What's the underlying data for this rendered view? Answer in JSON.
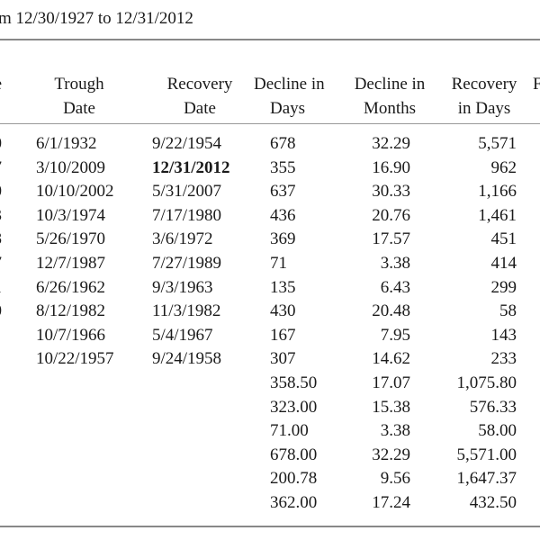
{
  "title": "m 12/30/1927 to 12/31/2012",
  "headers": [
    {
      "line1": "",
      "line2": "e"
    },
    {
      "line1": "Trough",
      "line2": "Date"
    },
    {
      "line1": "Recovery",
      "line2": "Date"
    },
    {
      "line1": "Decline in",
      "line2": "Days"
    },
    {
      "line1": "Decline in",
      "line2": "Months"
    },
    {
      "line1": "Recovery",
      "line2": "in Days"
    },
    {
      "line1": "F",
      "line2": ""
    }
  ],
  "rows": [
    {
      "c0": "0",
      "c1": "6/1/1932",
      "c2": "9/22/1954",
      "c2_bold": false,
      "c3": "678",
      "c4": "32.29",
      "c5": "5,571"
    },
    {
      "c0": "07",
      "c1": "3/10/2009",
      "c2": "12/31/2012",
      "c2_bold": true,
      "c3": "355",
      "c4": "16.90",
      "c5": "962"
    },
    {
      "c0": "0",
      "c1": "10/10/2002",
      "c2": "5/31/2007",
      "c2_bold": false,
      "c3": "637",
      "c4": "30.33",
      "c5": "1,166"
    },
    {
      "c0": "3",
      "c1": "10/3/1974",
      "c2": "7/17/1980",
      "c2_bold": false,
      "c3": "436",
      "c4": "20.76",
      "c5": "1,461"
    },
    {
      "c0": "58",
      "c1": "5/26/1970",
      "c2": "3/6/1972",
      "c2_bold": false,
      "c3": "369",
      "c4": "17.57",
      "c5": "451"
    },
    {
      "c0": "7",
      "c1": "12/7/1987",
      "c2": "7/27/1989",
      "c2_bold": false,
      "c3": "71",
      "c4": "3.38",
      "c5": "414"
    },
    {
      "c0": "61",
      "c1": "6/26/1962",
      "c2": "9/3/1963",
      "c2_bold": false,
      "c3": "135",
      "c4": "6.43",
      "c5": "299"
    },
    {
      "c0": "80",
      "c1": "8/12/1982",
      "c2": "11/3/1982",
      "c2_bold": false,
      "c3": "430",
      "c4": "20.48",
      "c5": "58"
    },
    {
      "c0": "",
      "c1": "10/7/1966",
      "c2": "5/4/1967",
      "c2_bold": false,
      "c3": "167",
      "c4": "7.95",
      "c5": "143"
    },
    {
      "c0": "",
      "c1": "10/22/1957",
      "c2": "9/24/1958",
      "c2_bold": false,
      "c3": "307",
      "c4": "14.62",
      "c5": "233"
    },
    {
      "c0": "",
      "c1": "",
      "c2": "",
      "c2_bold": false,
      "c3": "358.50",
      "c4": "17.07",
      "c5": "1,075.80"
    },
    {
      "c0": "",
      "c1": "",
      "c2": "",
      "c2_bold": false,
      "c3": "323.00",
      "c4": "15.38",
      "c5": "576.33"
    },
    {
      "c0": "",
      "c1": "",
      "c2": "",
      "c2_bold": false,
      "c3": "71.00",
      "c4": "3.38",
      "c5": "58.00"
    },
    {
      "c0": "",
      "c1": "",
      "c2": "",
      "c2_bold": false,
      "c3": "678.00",
      "c4": "32.29",
      "c5": "5,571.00"
    },
    {
      "c0": "",
      "c1": "",
      "c2": "",
      "c2_bold": false,
      "c3": "200.78",
      "c4": "9.56",
      "c5": "1,647.37"
    },
    {
      "c0": "",
      "c1": "",
      "c2": "",
      "c2_bold": false,
      "c3": "362.00",
      "c4": "17.24",
      "c5": "432.50"
    }
  ]
}
